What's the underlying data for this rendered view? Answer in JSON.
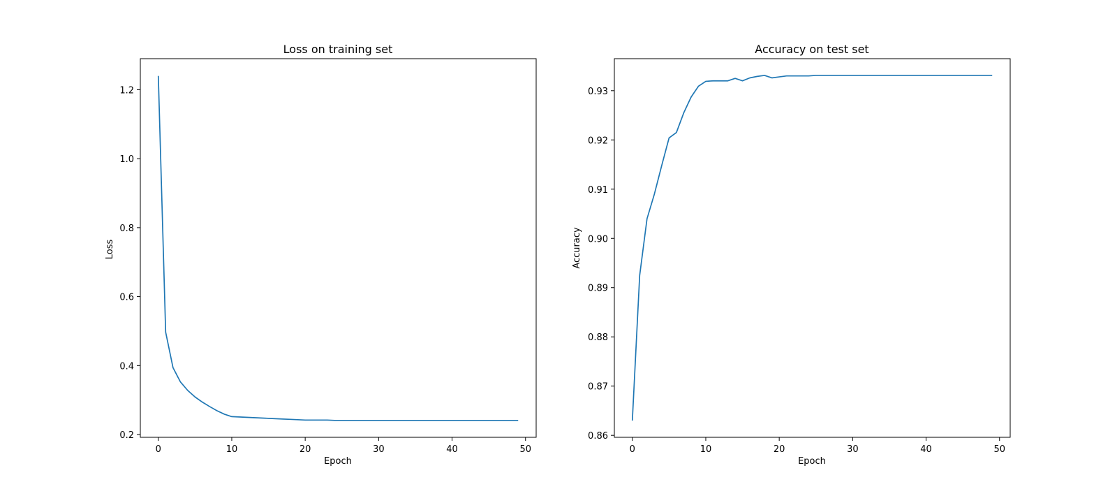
{
  "chart_data": [
    {
      "type": "line",
      "title": "Loss on training set",
      "xlabel": "Epoch",
      "ylabel": "Loss",
      "xlim": [
        -2.45,
        51.45
      ],
      "ylim": [
        0.192,
        1.29
      ],
      "xticks": [
        0,
        10,
        20,
        30,
        40,
        50
      ],
      "yticks": [
        0.2,
        0.4,
        0.6,
        0.8,
        1.0,
        1.2
      ],
      "ytick_decimals": 1,
      "grid": false,
      "line_color": "#1f77b4",
      "x": [
        0,
        1,
        2,
        3,
        4,
        5,
        6,
        7,
        8,
        9,
        10,
        11,
        12,
        13,
        14,
        15,
        16,
        17,
        18,
        19,
        20,
        21,
        22,
        23,
        24,
        25,
        26,
        27,
        28,
        29,
        30,
        31,
        32,
        33,
        34,
        35,
        36,
        37,
        38,
        39,
        40,
        41,
        42,
        43,
        44,
        45,
        46,
        47,
        48,
        49
      ],
      "y": [
        1.24,
        0.497,
        0.394,
        0.353,
        0.328,
        0.309,
        0.294,
        0.281,
        0.269,
        0.259,
        0.252,
        0.251,
        0.25,
        0.249,
        0.248,
        0.247,
        0.246,
        0.245,
        0.244,
        0.243,
        0.242,
        0.242,
        0.242,
        0.242,
        0.241,
        0.241,
        0.241,
        0.241,
        0.241,
        0.241,
        0.241,
        0.241,
        0.241,
        0.241,
        0.241,
        0.241,
        0.241,
        0.241,
        0.241,
        0.241,
        0.241,
        0.241,
        0.241,
        0.241,
        0.241,
        0.241,
        0.241,
        0.241,
        0.241,
        0.241
      ]
    },
    {
      "type": "line",
      "title": "Accuracy on test set",
      "xlabel": "Epoch",
      "ylabel": "Accuracy",
      "xlim": [
        -2.45,
        51.45
      ],
      "ylim": [
        0.8596,
        0.9365
      ],
      "xticks": [
        0,
        10,
        20,
        30,
        40,
        50
      ],
      "yticks": [
        0.86,
        0.87,
        0.88,
        0.89,
        0.9,
        0.91,
        0.92,
        0.93
      ],
      "ytick_decimals": 2,
      "grid": false,
      "line_color": "#1f77b4",
      "x": [
        0,
        1,
        2,
        3,
        4,
        5,
        6,
        7,
        8,
        9,
        10,
        11,
        12,
        13,
        14,
        15,
        16,
        17,
        18,
        19,
        20,
        21,
        22,
        23,
        24,
        25,
        26,
        27,
        28,
        29,
        30,
        31,
        32,
        33,
        34,
        35,
        36,
        37,
        38,
        39,
        40,
        41,
        42,
        43,
        44,
        45,
        46,
        47,
        48,
        49
      ],
      "y": [
        0.863,
        0.8925,
        0.904,
        0.909,
        0.9148,
        0.9204,
        0.9215,
        0.9255,
        0.9287,
        0.9309,
        0.9319,
        0.932,
        0.932,
        0.932,
        0.9325,
        0.932,
        0.9326,
        0.9329,
        0.9331,
        0.9326,
        0.9328,
        0.933,
        0.933,
        0.933,
        0.933,
        0.9331,
        0.9331,
        0.9331,
        0.9331,
        0.9331,
        0.9331,
        0.9331,
        0.9331,
        0.9331,
        0.9331,
        0.9331,
        0.9331,
        0.9331,
        0.9331,
        0.9331,
        0.9331,
        0.9331,
        0.9331,
        0.9331,
        0.9331,
        0.9331,
        0.9331,
        0.9331,
        0.9331,
        0.9331
      ]
    }
  ]
}
